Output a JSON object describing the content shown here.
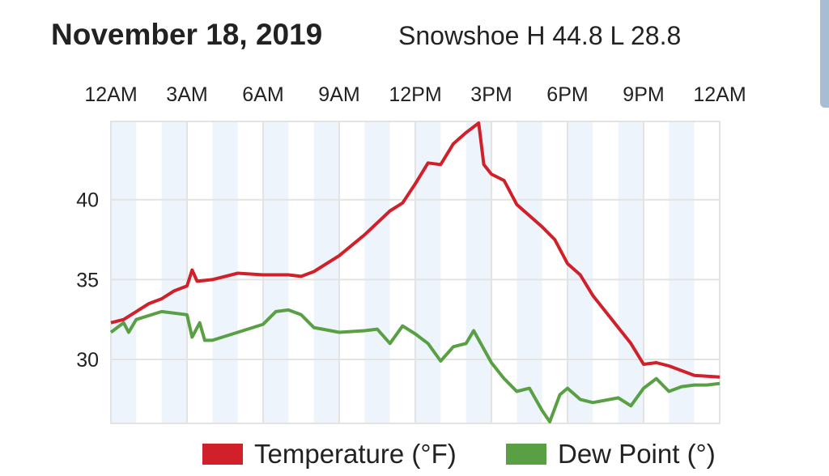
{
  "chart_data": {
    "type": "line",
    "title": "November 18, 2019",
    "subtitle": "Snowshoe H 44.8 L 28.8",
    "xlabel": "",
    "ylabel": "",
    "xlim": [
      0,
      24
    ],
    "ylim": [
      26,
      44.9
    ],
    "x_tick_values": [
      0,
      3,
      6,
      9,
      12,
      15,
      18,
      21,
      24
    ],
    "x_tick_labels": [
      "12AM",
      "3AM",
      "6AM",
      "9AM",
      "12PM",
      "3PM",
      "6PM",
      "9PM",
      "12AM"
    ],
    "y_ticks": [
      30,
      35,
      40
    ],
    "grid": true,
    "x_axis_position": "top",
    "legend_position": "bottom",
    "series": [
      {
        "name": "Temperature (°F)",
        "color": "#d0202a",
        "x": [
          0,
          0.5,
          1,
          1.5,
          2,
          2.5,
          3,
          3.2,
          3.4,
          4,
          5,
          6,
          7,
          7.5,
          8,
          9,
          10,
          11,
          11.5,
          12,
          12.5,
          13,
          13.5,
          14,
          14.5,
          14.7,
          15,
          15.5,
          16,
          17,
          17.5,
          18,
          18.5,
          19,
          20,
          20.5,
          21,
          21.5,
          22,
          22.5,
          23,
          24
        ],
        "y": [
          32.3,
          32.5,
          33.0,
          33.5,
          33.8,
          34.3,
          34.6,
          35.6,
          34.9,
          35.0,
          35.4,
          35.3,
          35.3,
          35.2,
          35.5,
          36.5,
          37.8,
          39.3,
          39.8,
          41.0,
          42.3,
          42.2,
          43.5,
          44.2,
          44.8,
          42.2,
          41.6,
          41.2,
          39.7,
          38.3,
          37.5,
          36.0,
          35.3,
          34.0,
          32.0,
          31.0,
          29.7,
          29.8,
          29.6,
          29.3,
          29.0,
          28.9
        ]
      },
      {
        "name": "Dew Point (°)",
        "color": "#58a043",
        "x": [
          0,
          0.5,
          0.7,
          1,
          2,
          3,
          3.2,
          3.5,
          3.7,
          4,
          5,
          6,
          6.5,
          7,
          7.5,
          8,
          9,
          10,
          10.5,
          11,
          11.5,
          12,
          12.5,
          13,
          13.5,
          14,
          14.3,
          15,
          15.5,
          16,
          16.5,
          17,
          17.3,
          17.7,
          18,
          18.5,
          19,
          20,
          20.5,
          21,
          21.5,
          22,
          22.5,
          23,
          23.5,
          24
        ],
        "y": [
          31.7,
          32.3,
          31.7,
          32.5,
          33.0,
          32.8,
          31.4,
          32.3,
          31.2,
          31.2,
          31.7,
          32.2,
          33.0,
          33.1,
          32.8,
          32.0,
          31.7,
          31.8,
          31.9,
          31.0,
          32.1,
          31.6,
          31.0,
          29.9,
          30.8,
          31.0,
          31.8,
          29.8,
          28.8,
          28.0,
          28.2,
          26.8,
          26.1,
          27.8,
          28.2,
          27.5,
          27.3,
          27.6,
          27.1,
          28.2,
          28.8,
          28.0,
          28.3,
          28.4,
          28.4,
          28.5
        ]
      }
    ],
    "colors": {
      "band": "#eef4fb",
      "grid": "#e3e3e3"
    }
  }
}
